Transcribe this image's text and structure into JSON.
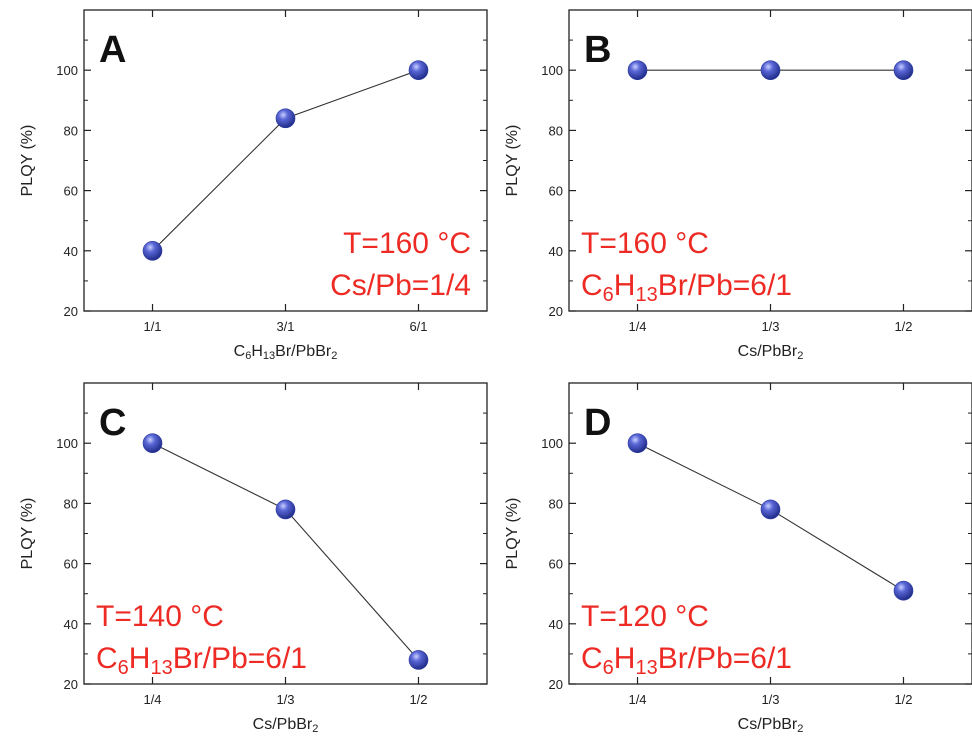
{
  "colors": {
    "marker": "#2b3aa0",
    "marker_highlight": "#8f9cf0",
    "line": "#333333",
    "annotation": "#ee2a24",
    "axis": "#222222"
  },
  "chart_data": [
    {
      "type": "line",
      "panel_label": "A",
      "categories": [
        "1/1",
        "3/1",
        "6/1"
      ],
      "series": [
        {
          "values": [
            40,
            84,
            100
          ]
        }
      ],
      "ylabel": "PLQY (%)",
      "xlabel_parts": [
        {
          "t": "C",
          "s": "n"
        },
        {
          "t": "6",
          "s": "sub"
        },
        {
          "t": "H",
          "s": "n"
        },
        {
          "t": "13",
          "s": "sub"
        },
        {
          "t": "Br/PbBr",
          "s": "n"
        },
        {
          "t": "2",
          "s": "sub"
        }
      ],
      "ylim": [
        20,
        120
      ],
      "yticks": [
        20,
        40,
        60,
        80,
        100
      ],
      "annotation_lines": [
        [
          {
            "t": "T=160 °C",
            "s": "n"
          }
        ],
        [
          {
            "t": "Cs/Pb=1/4",
            "s": "n"
          }
        ]
      ],
      "annotation_align": "right"
    },
    {
      "type": "line",
      "panel_label": "B",
      "categories": [
        "1/4",
        "1/3",
        "1/2"
      ],
      "series": [
        {
          "values": [
            100,
            100,
            100
          ]
        }
      ],
      "ylabel": "PLQY (%)",
      "xlabel_parts": [
        {
          "t": "Cs/PbBr",
          "s": "n"
        },
        {
          "t": "2",
          "s": "sub"
        }
      ],
      "ylim": [
        20,
        120
      ],
      "yticks": [
        20,
        40,
        60,
        80,
        100
      ],
      "annotation_lines": [
        [
          {
            "t": "T=160 °C",
            "s": "n"
          }
        ],
        [
          {
            "t": "C",
            "s": "n"
          },
          {
            "t": "6",
            "s": "sub"
          },
          {
            "t": "H",
            "s": "n"
          },
          {
            "t": "13",
            "s": "sub"
          },
          {
            "t": "Br/Pb=6/1",
            "s": "n"
          }
        ]
      ],
      "annotation_align": "left"
    },
    {
      "type": "line",
      "panel_label": "C",
      "categories": [
        "1/4",
        "1/3",
        "1/2"
      ],
      "series": [
        {
          "values": [
            100,
            78,
            28
          ]
        }
      ],
      "ylabel": "PLQY (%)",
      "xlabel_parts": [
        {
          "t": "Cs/PbBr",
          "s": "n"
        },
        {
          "t": "2",
          "s": "sub"
        }
      ],
      "ylim": [
        20,
        120
      ],
      "yticks": [
        20,
        40,
        60,
        80,
        100
      ],
      "annotation_lines": [
        [
          {
            "t": "T=140 °C",
            "s": "n"
          }
        ],
        [
          {
            "t": "C",
            "s": "n"
          },
          {
            "t": "6",
            "s": "sub"
          },
          {
            "t": "H",
            "s": "n"
          },
          {
            "t": "13",
            "s": "sub"
          },
          {
            "t": "Br/Pb=6/1",
            "s": "n"
          }
        ]
      ],
      "annotation_align": "left"
    },
    {
      "type": "line",
      "panel_label": "D",
      "categories": [
        "1/4",
        "1/3",
        "1/2"
      ],
      "series": [
        {
          "values": [
            100,
            78,
            51
          ]
        }
      ],
      "ylabel": "PLQY (%)",
      "xlabel_parts": [
        {
          "t": "Cs/PbBr",
          "s": "n"
        },
        {
          "t": "2",
          "s": "sub"
        }
      ],
      "ylim": [
        20,
        120
      ],
      "yticks": [
        20,
        40,
        60,
        80,
        100
      ],
      "annotation_lines": [
        [
          {
            "t": "T=120 °C",
            "s": "n"
          }
        ],
        [
          {
            "t": "C",
            "s": "n"
          },
          {
            "t": "6",
            "s": "sub"
          },
          {
            "t": "H",
            "s": "n"
          },
          {
            "t": "13",
            "s": "sub"
          },
          {
            "t": "Br/Pb=6/1",
            "s": "n"
          }
        ]
      ],
      "annotation_align": "left"
    }
  ]
}
